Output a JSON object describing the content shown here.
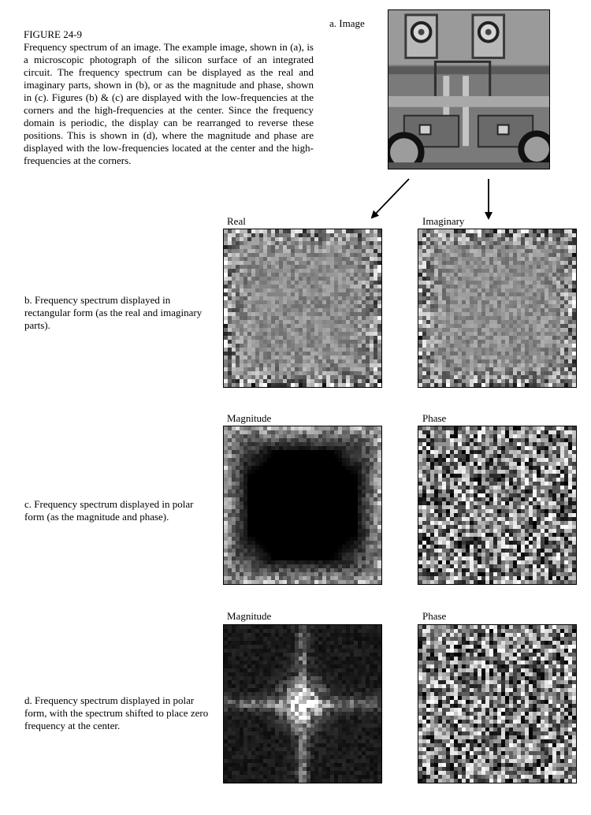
{
  "caption": {
    "figure_label": "FIGURE 24-9",
    "text": "Frequency spectrum of an image.  The example image, shown in (a), is a microscopic photograph of the silicon surface of an integrated circuit.  The frequency spectrum can be displayed as the real and imaginary parts, shown in (b), or as the magnitude and phase, shown in (c).  Figures (b) & (c) are displayed with the low-frequencies at the corners and the high-frequencies at the center.  Since the frequency domain is periodic, the display can be rearranged to reverse these positions.  This is shown in (d), where the magnitude and phase are displayed with the low-frequencies located at the center and the high-frequencies at the corners."
  },
  "image_a": {
    "label": "a. Image"
  },
  "row_b": {
    "description": "b. Frequency spectrum displayed in rectangular form (as the real and imaginary parts).",
    "left_label": "Real",
    "right_label": "Imaginary"
  },
  "row_c": {
    "description": "c. Frequency spectrum displayed in polar form (as the magnitude and phase).",
    "left_label": "Magnitude",
    "right_label": "Phase"
  },
  "row_d": {
    "description": "d. Frequency spectrum displayed in polar form, with the spectrum shifted to place zero frequency at the center.",
    "left_label": "Magnitude",
    "right_label": "Phase"
  }
}
